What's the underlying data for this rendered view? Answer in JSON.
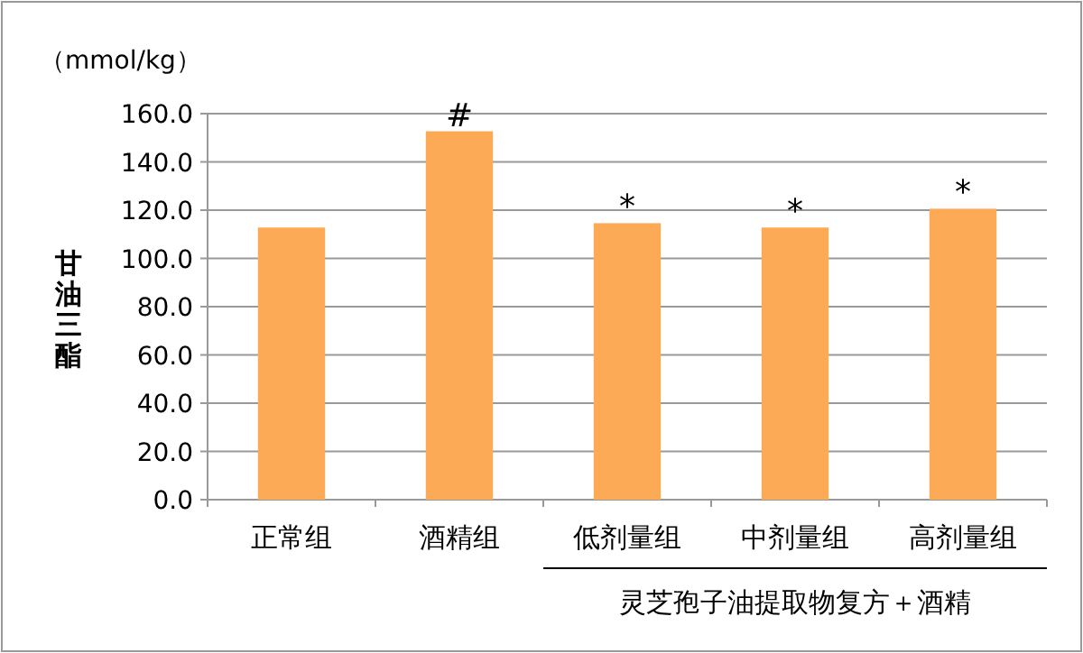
{
  "chart_data": {
    "type": "bar",
    "ylabel": "甘油三酯",
    "categories": [
      "正常组",
      "酒精组",
      "低剂量组",
      "中剂量组",
      "高剂量组"
    ],
    "values": [
      112.8,
      152.7,
      114.6,
      112.8,
      120.6
    ],
    "color": "#fcaa55",
    "ylim": [
      0,
      160
    ],
    "yticks": [
      {
        "value": 0,
        "label": "0.0"
      },
      {
        "value": 20,
        "label": "20.0"
      },
      {
        "value": 40,
        "label": "40.0"
      },
      {
        "value": 60,
        "label": "60.0"
      },
      {
        "value": 80,
        "label": "80.0"
      },
      {
        "value": 100,
        "label": "100.0"
      },
      {
        "value": 120,
        "label": "120.0"
      },
      {
        "value": 140,
        "label": "140.0"
      },
      {
        "value": 160,
        "label": "160.0"
      }
    ],
    "grid": "y",
    "annotations": [
      "（mmol/kg）",
      "灵芝孢子油提取物复方＋酒精",
      {
        "text": "#",
        "x": "酒精组",
        "y": 152.7
      },
      {
        "text": "*",
        "x": "低剂量组",
        "y": 114.6
      },
      {
        "text": "*",
        "x": "中剂量组",
        "y": 112.8
      },
      {
        "text": "*",
        "x": "高剂量组",
        "y": 120.6
      }
    ]
  }
}
